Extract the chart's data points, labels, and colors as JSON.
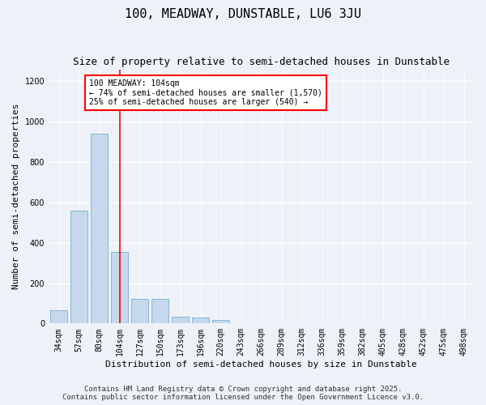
{
  "title": "100, MEADWAY, DUNSTABLE, LU6 3JU",
  "subtitle": "Size of property relative to semi-detached houses in Dunstable",
  "xlabel": "Distribution of semi-detached houses by size in Dunstable",
  "ylabel": "Number of semi-detached properties",
  "categories": [
    "34sqm",
    "57sqm",
    "80sqm",
    "104sqm",
    "127sqm",
    "150sqm",
    "173sqm",
    "196sqm",
    "220sqm",
    "243sqm",
    "266sqm",
    "289sqm",
    "312sqm",
    "336sqm",
    "359sqm",
    "382sqm",
    "405sqm",
    "428sqm",
    "452sqm",
    "475sqm",
    "498sqm"
  ],
  "values": [
    65,
    560,
    940,
    355,
    120,
    120,
    35,
    30,
    18,
    0,
    0,
    0,
    0,
    0,
    0,
    0,
    0,
    0,
    0,
    0,
    0
  ],
  "bar_color": "#c5d8ed",
  "bar_edge_color": "#7aaed0",
  "subject_bar_index": 3,
  "subject_line_color": "red",
  "subject_label": "100 MEADWAY: 104sqm",
  "annotation_line1": "← 74% of semi-detached houses are smaller (1,570)",
  "annotation_line2": "25% of semi-detached houses are larger (540) →",
  "annotation_box_color": "white",
  "annotation_box_edge_color": "red",
  "ylim": [
    0,
    1260
  ],
  "yticks": [
    0,
    200,
    400,
    600,
    800,
    1000,
    1200
  ],
  "footer_line1": "Contains HM Land Registry data © Crown copyright and database right 2025.",
  "footer_line2": "Contains public sector information licensed under the Open Government Licence v3.0.",
  "bg_color": "#eef2f8",
  "plot_bg_color": "#eef2f8",
  "grid_color": "white",
  "title_fontsize": 11,
  "subtitle_fontsize": 9,
  "label_fontsize": 8,
  "tick_fontsize": 7,
  "footer_fontsize": 6.5,
  "annotation_fontsize": 7
}
